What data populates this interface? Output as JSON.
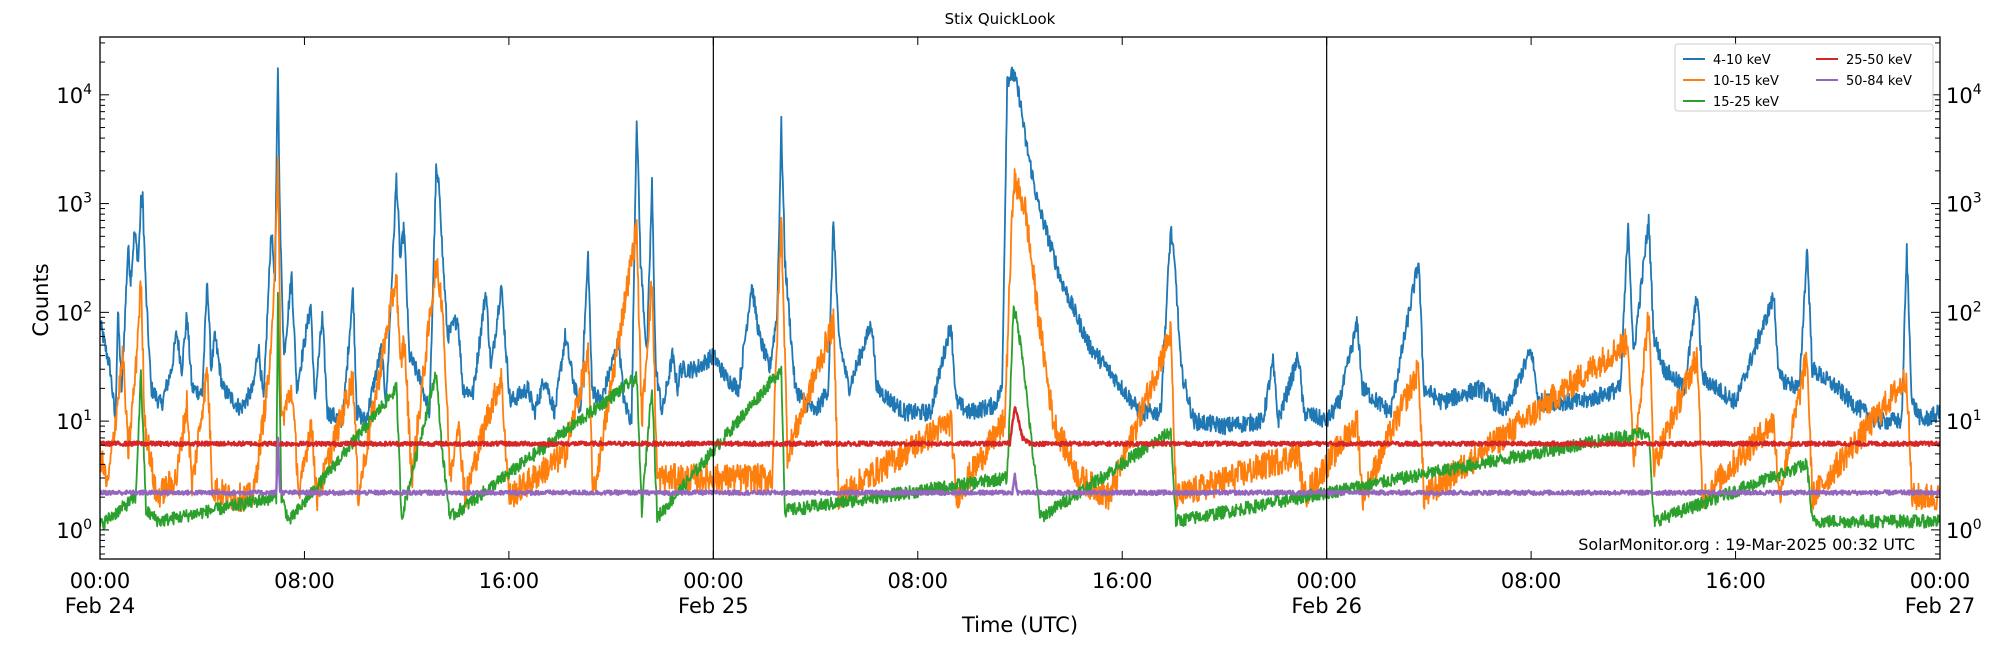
{
  "chart_data": {
    "type": "line",
    "title": "Stix QuickLook",
    "xlabel": "Time (UTC)",
    "ylabel": "Counts",
    "yscale": "log",
    "ylim": [
      0.54,
      34000
    ],
    "xlim_hours": [
      0,
      72
    ],
    "x_unit": "hours since 00:00 Feb 24",
    "x_ticks": [
      {
        "h": 0,
        "time": "00:00",
        "date": "Feb 24"
      },
      {
        "h": 8,
        "time": "08:00",
        "date": ""
      },
      {
        "h": 16,
        "time": "16:00",
        "date": ""
      },
      {
        "h": 24,
        "time": "00:00",
        "date": "Feb 25"
      },
      {
        "h": 32,
        "time": "08:00",
        "date": ""
      },
      {
        "h": 40,
        "time": "16:00",
        "date": ""
      },
      {
        "h": 48,
        "time": "00:00",
        "date": "Feb 26"
      },
      {
        "h": 56,
        "time": "08:00",
        "date": ""
      },
      {
        "h": 64,
        "time": "16:00",
        "date": ""
      },
      {
        "h": 72,
        "time": "00:00",
        "date": "Feb 27"
      }
    ],
    "y_ticks": [
      {
        "v": 1,
        "base": "10",
        "exp": "0"
      },
      {
        "v": 10,
        "base": "10",
        "exp": "1"
      },
      {
        "v": 100,
        "base": "10",
        "exp": "2"
      },
      {
        "v": 1000,
        "base": "10",
        "exp": "3"
      },
      {
        "v": 10000,
        "base": "10",
        "exp": "4"
      }
    ],
    "day_boundaries_hours": [
      24,
      48
    ],
    "legend_position": "top-right",
    "annotation": "SolarMonitor.org : 19-Mar-2025 00:32 UTC",
    "series": [
      {
        "name": "4-10 keV",
        "color": "#1f77b4",
        "noise": 0.08,
        "points": [
          [
            0,
            80
          ],
          [
            0.4,
            30
          ],
          [
            0.6,
            10
          ],
          [
            0.7,
            100
          ],
          [
            0.85,
            20
          ],
          [
            1.1,
            400
          ],
          [
            1.2,
            200
          ],
          [
            1.35,
            550
          ],
          [
            1.5,
            300
          ],
          [
            1.6,
            1000
          ],
          [
            1.67,
            1100
          ],
          [
            1.8,
            150
          ],
          [
            2.0,
            20
          ],
          [
            2.4,
            14
          ],
          [
            2.8,
            30
          ],
          [
            3.0,
            65
          ],
          [
            3.2,
            30
          ],
          [
            3.4,
            95
          ],
          [
            3.6,
            20
          ],
          [
            4.0,
            18
          ],
          [
            4.2,
            200
          ],
          [
            4.35,
            30
          ],
          [
            4.5,
            60
          ],
          [
            4.8,
            20
          ],
          [
            5.5,
            13
          ],
          [
            6.0,
            20
          ],
          [
            6.2,
            50
          ],
          [
            6.4,
            15
          ],
          [
            6.7,
            580
          ],
          [
            6.85,
            200
          ],
          [
            6.96,
            19500
          ],
          [
            7.05,
            600
          ],
          [
            7.2,
            40
          ],
          [
            7.5,
            220
          ],
          [
            7.7,
            20
          ],
          [
            8.25,
            120
          ],
          [
            8.4,
            15
          ],
          [
            8.7,
            90
          ],
          [
            8.9,
            12
          ],
          [
            9.5,
            10
          ],
          [
            9.9,
            165
          ],
          [
            10.05,
            12
          ],
          [
            10.4,
            10
          ],
          [
            11.0,
            45
          ],
          [
            11.2,
            15
          ],
          [
            11.6,
            1750
          ],
          [
            11.75,
            300
          ],
          [
            11.9,
            620
          ],
          [
            12.1,
            40
          ],
          [
            12.5,
            25
          ],
          [
            12.9,
            12
          ],
          [
            13.15,
            2000
          ],
          [
            13.3,
            1200
          ],
          [
            13.4,
            350
          ],
          [
            13.6,
            60
          ],
          [
            14.0,
            90
          ],
          [
            14.2,
            20
          ],
          [
            14.6,
            18
          ],
          [
            15.1,
            160
          ],
          [
            15.3,
            30
          ],
          [
            15.7,
            180
          ],
          [
            15.9,
            40
          ],
          [
            16.05,
            15
          ],
          [
            16.75,
            20
          ],
          [
            17.0,
            12
          ],
          [
            17.4,
            25
          ],
          [
            17.8,
            12
          ],
          [
            18.2,
            60
          ],
          [
            18.5,
            25
          ],
          [
            18.8,
            12
          ],
          [
            19.1,
            340
          ],
          [
            19.25,
            20
          ],
          [
            19.6,
            15
          ],
          [
            20.3,
            55
          ],
          [
            20.5,
            15
          ],
          [
            20.8,
            10
          ],
          [
            21.0,
            6700
          ],
          [
            21.15,
            300
          ],
          [
            21.4,
            40
          ],
          [
            21.6,
            1500
          ],
          [
            21.75,
            30
          ],
          [
            22.0,
            12
          ],
          [
            22.4,
            40
          ],
          [
            22.6,
            20
          ],
          [
            22.7,
            30
          ],
          [
            23.3,
            30
          ],
          [
            24.0,
            40
          ],
          [
            24.5,
            25
          ],
          [
            25.0,
            20
          ],
          [
            25.5,
            180
          ],
          [
            25.8,
            60
          ],
          [
            26.2,
            30
          ],
          [
            26.5,
            100
          ],
          [
            26.66,
            5300
          ],
          [
            26.8,
            300
          ],
          [
            27.2,
            20
          ],
          [
            27.6,
            15
          ],
          [
            28.0,
            12
          ],
          [
            28.5,
            20
          ],
          [
            28.7,
            720
          ],
          [
            28.9,
            60
          ],
          [
            29.3,
            20
          ],
          [
            30.2,
            80
          ],
          [
            30.4,
            20
          ],
          [
            31.0,
            15
          ],
          [
            31.5,
            12
          ],
          [
            32.5,
            12
          ],
          [
            33.3,
            80
          ],
          [
            33.5,
            15
          ],
          [
            34.0,
            12
          ],
          [
            35.0,
            14
          ],
          [
            35.3,
            20
          ],
          [
            35.5,
            14000
          ],
          [
            35.75,
            15500
          ],
          [
            36.0,
            9000
          ],
          [
            36.2,
            4000
          ],
          [
            36.7,
            1000
          ],
          [
            37.6,
            200
          ],
          [
            38.7,
            50
          ],
          [
            39.7,
            25
          ],
          [
            40.7,
            12
          ],
          [
            41.5,
            12
          ],
          [
            41.9,
            600
          ],
          [
            42.1,
            200
          ],
          [
            42.3,
            30
          ],
          [
            42.8,
            10
          ],
          [
            44.0,
            9
          ],
          [
            45.5,
            10
          ],
          [
            45.9,
            35
          ],
          [
            46.1,
            10
          ],
          [
            46.9,
            40
          ],
          [
            47.1,
            12
          ],
          [
            48.0,
            10
          ],
          [
            48.5,
            15
          ],
          [
            49.2,
            80
          ],
          [
            49.4,
            20
          ],
          [
            50.0,
            15
          ],
          [
            50.5,
            12
          ],
          [
            51.6,
            300
          ],
          [
            51.8,
            20
          ],
          [
            52.5,
            15
          ],
          [
            54.0,
            20
          ],
          [
            55.0,
            12
          ],
          [
            56.0,
            45
          ],
          [
            56.3,
            15
          ],
          [
            58.0,
            15
          ],
          [
            59.5,
            20
          ],
          [
            59.8,
            700
          ],
          [
            60.0,
            40
          ],
          [
            60.6,
            700
          ],
          [
            60.8,
            60
          ],
          [
            61.2,
            30
          ],
          [
            62.0,
            20
          ],
          [
            62.5,
            150
          ],
          [
            62.7,
            25
          ],
          [
            64.0,
            15
          ],
          [
            65.5,
            140
          ],
          [
            65.7,
            25
          ],
          [
            66.5,
            20
          ],
          [
            66.8,
            400
          ],
          [
            67.0,
            30
          ],
          [
            68.0,
            20
          ],
          [
            68.5,
            15
          ],
          [
            69.5,
            10
          ],
          [
            70.5,
            10
          ],
          [
            70.7,
            370
          ],
          [
            70.9,
            15
          ],
          [
            71.3,
            10
          ],
          [
            72,
            12
          ]
        ]
      },
      {
        "name": "10-15 keV",
        "color": "#ff7f0e",
        "noise": 0.13,
        "points": [
          [
            0,
            5
          ],
          [
            0.3,
            2.5
          ],
          [
            0.9,
            40
          ],
          [
            1.1,
            5
          ],
          [
            1.4,
            30
          ],
          [
            1.6,
            200
          ],
          [
            1.75,
            10
          ],
          [
            2.2,
            2
          ],
          [
            3.0,
            3
          ],
          [
            3.4,
            15
          ],
          [
            3.6,
            2.5
          ],
          [
            4.2,
            30
          ],
          [
            4.4,
            2.5
          ],
          [
            5.0,
            2
          ],
          [
            6.0,
            2
          ],
          [
            6.7,
            40
          ],
          [
            6.96,
            2200
          ],
          [
            7.1,
            10
          ],
          [
            7.5,
            20
          ],
          [
            7.8,
            2
          ],
          [
            8.25,
            10
          ],
          [
            8.5,
            2
          ],
          [
            9.9,
            25
          ],
          [
            10.1,
            2
          ],
          [
            11.6,
            220
          ],
          [
            11.75,
            30
          ],
          [
            11.9,
            60
          ],
          [
            12.2,
            3
          ],
          [
            13.15,
            280
          ],
          [
            13.4,
            120
          ],
          [
            13.7,
            3
          ],
          [
            14.0,
            10
          ],
          [
            14.3,
            2
          ],
          [
            15.1,
            10
          ],
          [
            15.7,
            25
          ],
          [
            16.0,
            2
          ],
          [
            18.2,
            5
          ],
          [
            19.1,
            40
          ],
          [
            19.3,
            2
          ],
          [
            21.0,
            600
          ],
          [
            21.2,
            10
          ],
          [
            21.6,
            200
          ],
          [
            21.8,
            3
          ],
          [
            22.3,
            3
          ],
          [
            24.0,
            3
          ],
          [
            25.5,
            3
          ],
          [
            26.3,
            3
          ],
          [
            26.66,
            750
          ],
          [
            26.9,
            5
          ],
          [
            28.7,
            80
          ],
          [
            28.9,
            2
          ],
          [
            33.3,
            10
          ],
          [
            33.5,
            2
          ],
          [
            35.4,
            10
          ],
          [
            35.75,
            1700
          ],
          [
            36.2,
            900
          ],
          [
            36.7,
            100
          ],
          [
            37.3,
            10
          ],
          [
            38.3,
            3
          ],
          [
            39.5,
            2
          ],
          [
            41.9,
            65
          ],
          [
            42.1,
            2
          ],
          [
            46.9,
            5
          ],
          [
            47.1,
            2
          ],
          [
            49.2,
            10
          ],
          [
            49.4,
            2
          ],
          [
            51.6,
            30
          ],
          [
            51.8,
            2
          ],
          [
            59.8,
            55
          ],
          [
            60.0,
            4
          ],
          [
            60.6,
            100
          ],
          [
            60.8,
            4
          ],
          [
            62.5,
            40
          ],
          [
            62.7,
            2
          ],
          [
            65.5,
            10
          ],
          [
            65.7,
            2
          ],
          [
            66.8,
            40
          ],
          [
            67.0,
            2
          ],
          [
            70.7,
            25
          ],
          [
            70.9,
            2
          ],
          [
            72,
            2
          ]
        ]
      },
      {
        "name": "15-25 keV",
        "color": "#2ca02c",
        "noise": 0.06,
        "points": [
          [
            0,
            1.1
          ],
          [
            1.4,
            2
          ],
          [
            1.6,
            28
          ],
          [
            1.8,
            1.5
          ],
          [
            2.3,
            1.2
          ],
          [
            6.9,
            2
          ],
          [
            6.96,
            150
          ],
          [
            7.1,
            2
          ],
          [
            7.4,
            1.2
          ],
          [
            11.6,
            20
          ],
          [
            11.8,
            1.3
          ],
          [
            13.15,
            28
          ],
          [
            13.4,
            5
          ],
          [
            13.7,
            1.3
          ],
          [
            21.0,
            25
          ],
          [
            21.2,
            1.5
          ],
          [
            21.6,
            22
          ],
          [
            21.8,
            1.3
          ],
          [
            26.66,
            30
          ],
          [
            26.8,
            1.5
          ],
          [
            35.5,
            3
          ],
          [
            35.75,
            120
          ],
          [
            36.1,
            40
          ],
          [
            36.5,
            5
          ],
          [
            36.8,
            1.3
          ],
          [
            41.9,
            8
          ],
          [
            42.1,
            1.2
          ],
          [
            60.6,
            8
          ],
          [
            60.8,
            1.2
          ],
          [
            66.8,
            4
          ],
          [
            67.0,
            1.2
          ],
          [
            72,
            1.2
          ]
        ]
      },
      {
        "name": "25-50 keV",
        "color": "#d62728",
        "noise": 0.02,
        "points": [
          [
            0,
            6.2
          ],
          [
            35.6,
            6.2
          ],
          [
            35.8,
            14
          ],
          [
            36.1,
            7
          ],
          [
            36.4,
            6.2
          ],
          [
            72,
            6.2
          ]
        ]
      },
      {
        "name": "50-84 keV",
        "color": "#9467bd",
        "noise": 0.02,
        "points": [
          [
            0,
            2.2
          ],
          [
            6.9,
            2.2
          ],
          [
            6.96,
            7
          ],
          [
            7.05,
            2.2
          ],
          [
            35.7,
            2.2
          ],
          [
            35.8,
            3.2
          ],
          [
            35.9,
            2.2
          ],
          [
            72,
            2.2
          ]
        ]
      }
    ]
  }
}
